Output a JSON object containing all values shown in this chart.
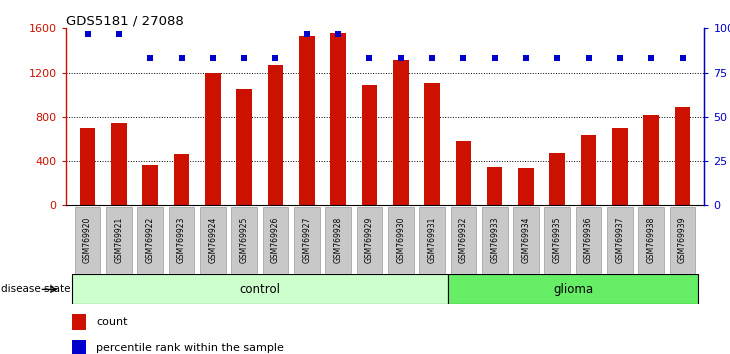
{
  "title": "GDS5181 / 27088",
  "samples": [
    "GSM769920",
    "GSM769921",
    "GSM769922",
    "GSM769923",
    "GSM769924",
    "GSM769925",
    "GSM769926",
    "GSM769927",
    "GSM769928",
    "GSM769929",
    "GSM769930",
    "GSM769931",
    "GSM769932",
    "GSM769933",
    "GSM769934",
    "GSM769935",
    "GSM769936",
    "GSM769937",
    "GSM769938",
    "GSM769939"
  ],
  "counts": [
    700,
    740,
    360,
    460,
    1200,
    1050,
    1270,
    1530,
    1560,
    1090,
    1310,
    1110,
    580,
    350,
    340,
    470,
    640,
    700,
    820,
    890
  ],
  "percentiles": [
    97,
    97,
    83,
    83,
    83,
    83,
    83,
    97,
    97,
    83,
    83,
    83,
    83,
    83,
    83,
    83,
    83,
    83,
    83,
    83
  ],
  "bar_color": "#cc1100",
  "dot_color": "#0000cc",
  "ylim_left": [
    0,
    1600
  ],
  "ylim_right": [
    0,
    100
  ],
  "yticks_left": [
    0,
    400,
    800,
    1200,
    1600
  ],
  "yticks_right": [
    0,
    25,
    50,
    75,
    100
  ],
  "control_count": 12,
  "glioma_count": 8,
  "control_label": "control",
  "glioma_label": "glioma",
  "disease_state_label": "disease state",
  "legend_count_label": "count",
  "legend_pct_label": "percentile rank within the sample",
  "bar_color_legend": "#cc1100",
  "dot_color_legend": "#0000cc",
  "bar_width": 0.5,
  "control_bg": "#ccffcc",
  "glioma_bg": "#66ee66",
  "sample_bg": "#c8c8c8"
}
